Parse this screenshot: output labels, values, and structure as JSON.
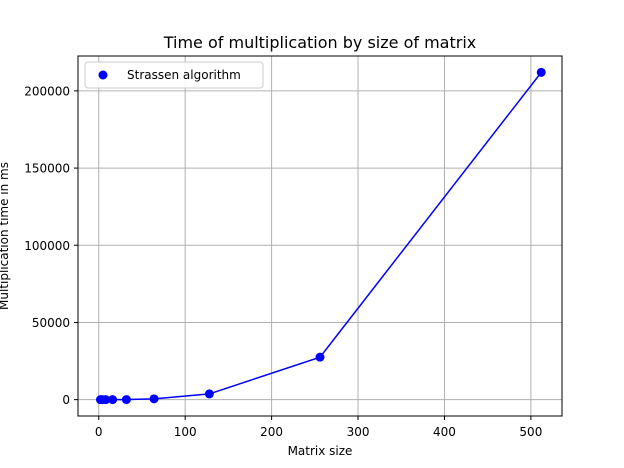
{
  "chart_data": {
    "type": "line",
    "title": "Time of multiplication by size of matrix",
    "xlabel": "Matrix size",
    "ylabel": "Multiplication time in ms",
    "xlim": [
      -24,
      536
    ],
    "ylim": [
      -10600,
      222600
    ],
    "xticks": [
      0,
      100,
      200,
      300,
      400,
      500
    ],
    "yticks": [
      0,
      50000,
      100000,
      150000,
      200000
    ],
    "grid": true,
    "legend_position": "top-left",
    "series": [
      {
        "name": "Strassen algorithm",
        "color": "#0000ff",
        "marker": "circle",
        "x": [
          2,
          4,
          8,
          16,
          32,
          64,
          128,
          256,
          512
        ],
        "y": [
          0,
          0,
          1,
          5,
          40,
          500,
          3700,
          27500,
          212000
        ]
      }
    ]
  }
}
